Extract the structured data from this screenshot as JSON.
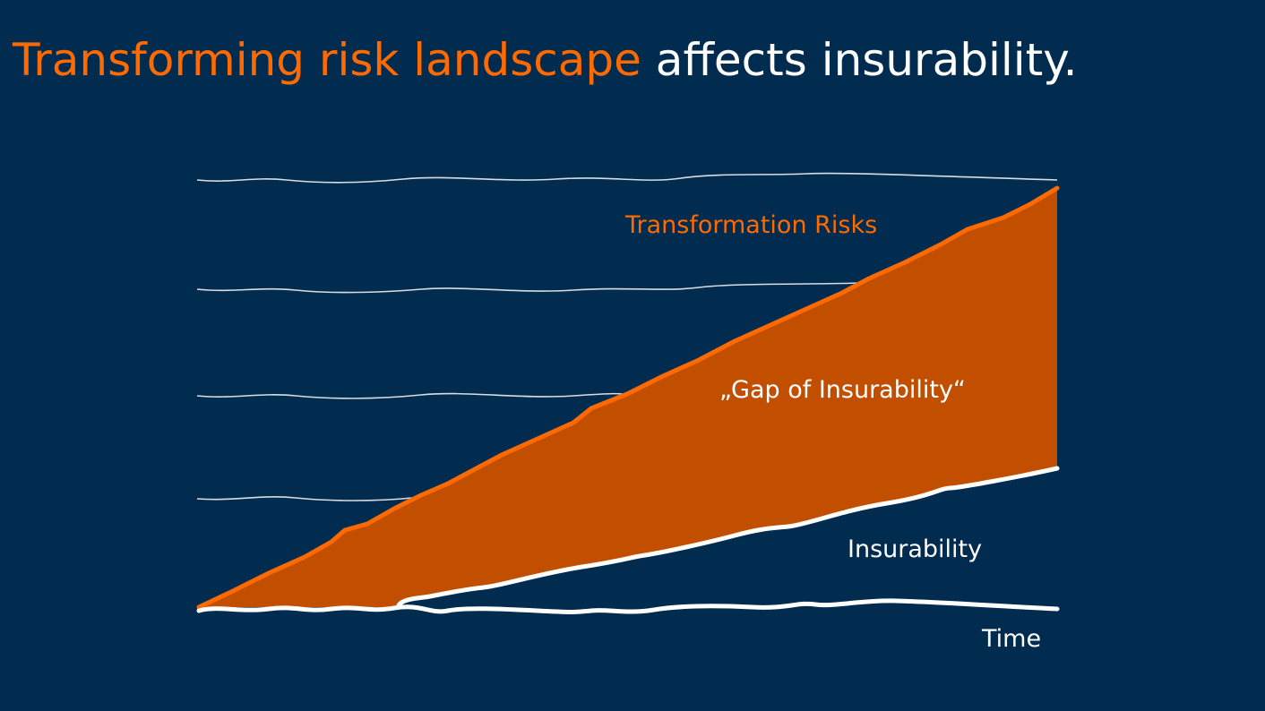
{
  "title": {
    "highlight": "Transforming risk landscape",
    "rest": " affects insurability."
  },
  "diagram": {
    "risk_label": "Transformation Risks",
    "gap_label": "„Gap of Insurability“",
    "insurability_label": "Insurability",
    "time_label": "Time"
  },
  "colors": {
    "background": "#012c4f",
    "risk_line": "#ff6a00",
    "gap_fill": "#c24e00",
    "insurability_line": "#ffffff"
  }
}
